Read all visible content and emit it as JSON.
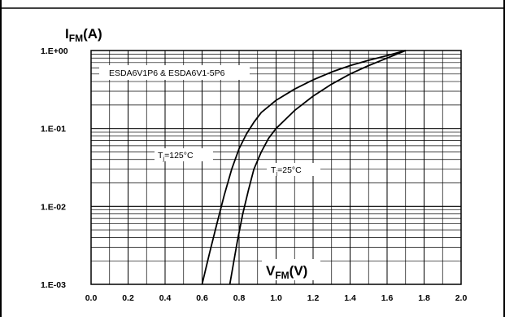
{
  "chart_data": {
    "type": "line",
    "title": "",
    "product_label": "ESDA6V1P6 & ESDA6V1-5P6",
    "y_axis": {
      "label_main": "I",
      "label_sub": "FM",
      "label_unit": "(A)",
      "scale": "log",
      "range": [
        0.001,
        1.0
      ],
      "tick_labels": [
        "1.E-03",
        "1.E-02",
        "1.E-01",
        "1.E+00"
      ]
    },
    "x_axis": {
      "label_main": "V",
      "label_sub": "FM",
      "label_unit": "(V)",
      "scale": "linear",
      "range": [
        0.0,
        2.0
      ],
      "tick_labels": [
        "0.0",
        "0.2",
        "0.4",
        "0.6",
        "0.8",
        "1.0",
        "1.2",
        "1.4",
        "1.6",
        "1.8",
        "2.0"
      ]
    },
    "grid": true,
    "series": [
      {
        "name": "Tj=125°C",
        "label_t": "T",
        "label_sub": "j",
        "label_rest": "=125°C",
        "x": [
          0.6,
          0.64,
          0.68,
          0.72,
          0.76,
          0.8,
          0.84,
          0.88,
          0.92,
          1.0,
          1.1,
          1.2,
          1.3,
          1.4,
          1.5,
          1.6,
          1.7
        ],
        "y": [
          0.001,
          0.0025,
          0.006,
          0.014,
          0.03,
          0.055,
          0.085,
          0.12,
          0.16,
          0.23,
          0.32,
          0.42,
          0.53,
          0.64,
          0.75,
          0.86,
          1.0
        ]
      },
      {
        "name": "Tj=25°C",
        "label_t": "T",
        "label_sub": "j",
        "label_rest": "=25°C",
        "x": [
          0.75,
          0.79,
          0.82,
          0.85,
          0.88,
          0.92,
          0.96,
          1.0,
          1.1,
          1.2,
          1.3,
          1.4,
          1.5,
          1.6,
          1.7
        ],
        "y": [
          0.001,
          0.0035,
          0.008,
          0.016,
          0.03,
          0.05,
          0.075,
          0.1,
          0.17,
          0.26,
          0.37,
          0.5,
          0.64,
          0.8,
          1.0
        ]
      }
    ]
  }
}
